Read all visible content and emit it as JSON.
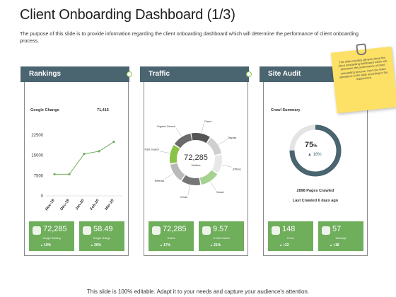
{
  "title": "Client Onboarding Dashboard (1/3)",
  "description": "The purpose of this slide is to provide information regarding the client onboarding dashboard which will determine the performance of client onboarding process.",
  "note": "This slide provides glimpse about the client onboarding dashboard which will determine the performance of client onboarding process. User can make alterations in the slide according to the requirement.",
  "footer": "This slide is 100% editable. Adapt it to your needs and capture your audience's attention.",
  "rankings": {
    "heading": "Rankings",
    "google_change_label": "Google Change",
    "google_change_value": "71,415",
    "tiles": [
      {
        "icon": "ranking-icon",
        "value": "72,285",
        "label": "Google Ranking",
        "change": "19%"
      },
      {
        "icon": "google-change-icon",
        "value": "58.49",
        "label": "Google Change",
        "change": "20%"
      }
    ]
  },
  "traffic": {
    "heading": "Traffic",
    "center_value": "72,285",
    "center_label": "Visitors",
    "segments": [
      "Direct",
      "Display",
      "(Other)",
      "Social",
      "Email",
      "Referral",
      "Paid Search",
      "Organic Search"
    ],
    "tiles": [
      {
        "icon": "visitors-icon",
        "value": "72,285",
        "label": "Visitors",
        "change": "17%"
      },
      {
        "icon": "new-visitors-icon",
        "value": "9.57",
        "label": "% New Visitors",
        "change": "21%"
      }
    ]
  },
  "site_audit": {
    "heading": "Site Audit",
    "crawl_label": "Crawl Summary",
    "gauge_value": "75",
    "gauge_unit": "%",
    "gauge_change": "16%",
    "pages_crawled": "2898 Pages Crawled",
    "last_crawled": "Last Crawled 6 days ago",
    "tiles": [
      {
        "icon": "errors-icon",
        "value": "148",
        "label": "Errors",
        "change": "+22"
      },
      {
        "icon": "warnings-icon",
        "value": "57",
        "label": "Warnings",
        "change": "+18"
      }
    ]
  },
  "chart_data": {
    "type": "line",
    "categories": [
      "Nov-19",
      "Dec-19",
      "Jan-20",
      "Feb-20",
      "Mar-20"
    ],
    "y_ticks": [
      "22500",
      "15000",
      "7500",
      "0"
    ],
    "ylim": [
      0,
      22500
    ],
    "series": [
      {
        "values": [
          8000,
          8000,
          15500,
          16500,
          20000
        ]
      }
    ],
    "color": "#6fae5b"
  }
}
